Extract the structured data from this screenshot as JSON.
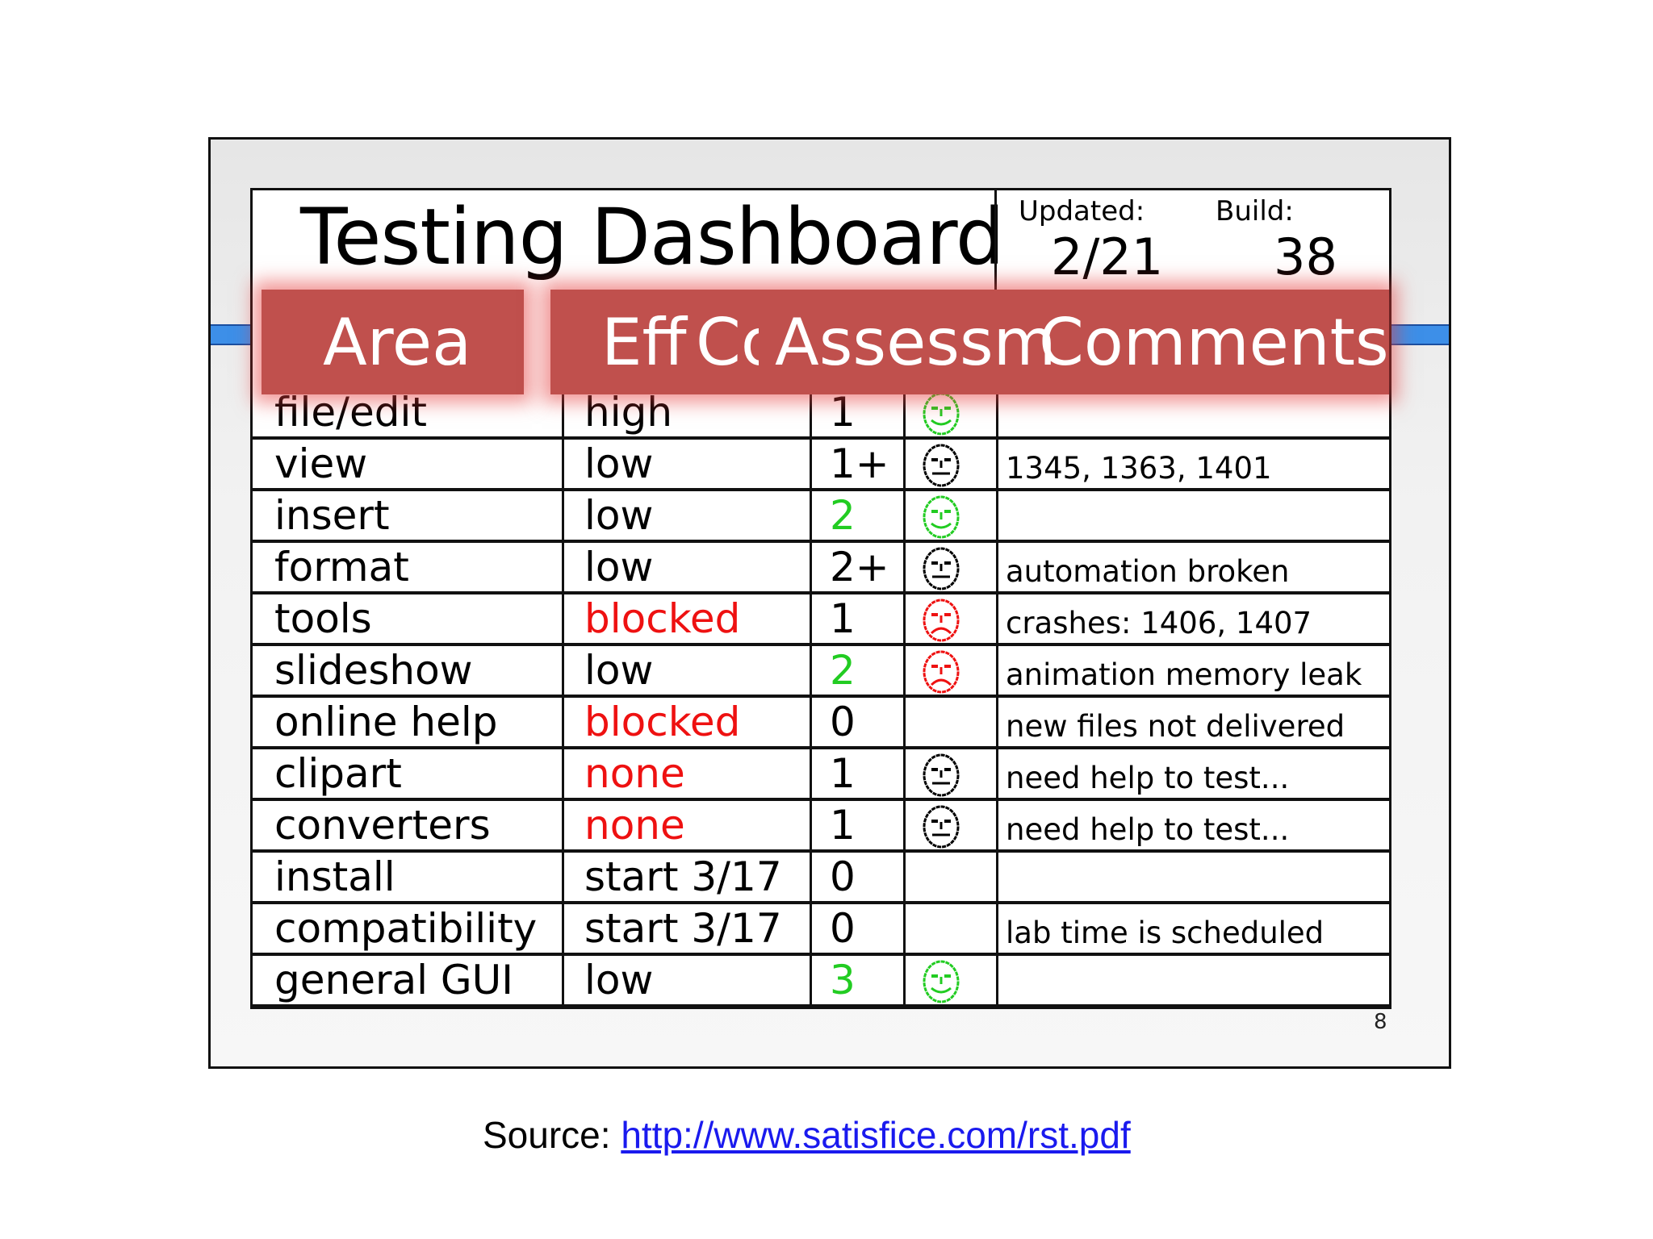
{
  "slide": {
    "title": "Testing Dashboard",
    "updated_label": "Updated:",
    "updated_value": "2/21",
    "build_label": "Build:",
    "build_value": "38",
    "page_number": "8"
  },
  "headers": {
    "area": "Area",
    "effort": "Eff",
    "coverage": "Co",
    "assessment": "Assessm",
    "comments": "Comments"
  },
  "colors": {
    "green": "#22cc22",
    "red": "#ee1111",
    "black": "#000000",
    "header_bg": "#c0504d",
    "blue_line": "#3d8fe8"
  },
  "rows": [
    {
      "area": "file/edit",
      "effort": "high",
      "effort_color": "black",
      "coverage": "1",
      "coverage_color": "black",
      "face": "happy",
      "comment": ""
    },
    {
      "area": "view",
      "effort": "low",
      "effort_color": "black",
      "coverage": "1+",
      "coverage_color": "black",
      "face": "neutral",
      "comment": "1345, 1363, 1401"
    },
    {
      "area": "insert",
      "effort": "low",
      "effort_color": "black",
      "coverage": "2",
      "coverage_color": "green",
      "face": "happy",
      "comment": ""
    },
    {
      "area": "format",
      "effort": "low",
      "effort_color": "black",
      "coverage": "2+",
      "coverage_color": "black",
      "face": "neutral",
      "comment": "automation broken"
    },
    {
      "area": "tools",
      "effort": "blocked",
      "effort_color": "red",
      "coverage": "1",
      "coverage_color": "black",
      "face": "sad",
      "comment": "crashes: 1406, 1407"
    },
    {
      "area": "slideshow",
      "effort": "low",
      "effort_color": "black",
      "coverage": "2",
      "coverage_color": "green",
      "face": "sad",
      "comment": "animation memory leak"
    },
    {
      "area": "online help",
      "effort": "blocked",
      "effort_color": "red",
      "coverage": "0",
      "coverage_color": "black",
      "face": "",
      "comment": "new files not delivered"
    },
    {
      "area": "clipart",
      "effort": "none",
      "effort_color": "red",
      "coverage": "1",
      "coverage_color": "black",
      "face": "neutral",
      "comment": "need help to test..."
    },
    {
      "area": "converters",
      "effort": "none",
      "effort_color": "red",
      "coverage": "1",
      "coverage_color": "black",
      "face": "neutral",
      "comment": "need help to test..."
    },
    {
      "area": "install",
      "effort": "start 3/17",
      "effort_color": "black",
      "coverage": "0",
      "coverage_color": "black",
      "face": "",
      "comment": ""
    },
    {
      "area": "compatibility",
      "effort": "start 3/17",
      "effort_color": "black",
      "coverage": "0",
      "coverage_color": "black",
      "face": "",
      "comment": "lab time is scheduled"
    },
    {
      "area": "general GUI",
      "effort": "low",
      "effort_color": "black",
      "coverage": "3",
      "coverage_color": "green",
      "face": "happy",
      "comment": ""
    }
  ],
  "source": {
    "label": "Source: ",
    "link": "http://www.satisfice.com/rst.pdf"
  }
}
